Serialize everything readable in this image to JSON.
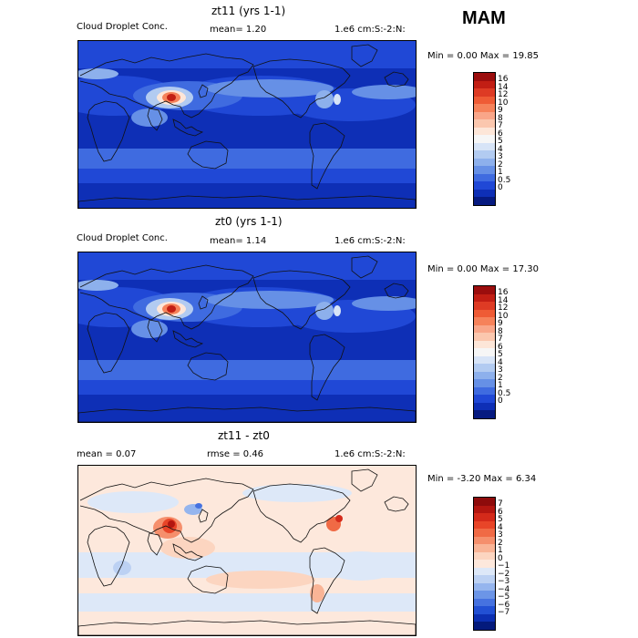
{
  "season": "MAM",
  "panels": [
    {
      "title": "zt11 (yrs 1-1)",
      "left_label": "Cloud Droplet Conc.",
      "mid_label": "mean=    1.20",
      "right_label": "1.e6 cm:S:-2:N:",
      "minmax": "Min =    0.00 Max =   19.85",
      "field": "zt11",
      "colorbar": {
        "labels": [
          "16",
          "14",
          "12",
          "10",
          "9",
          "8",
          "7",
          "6",
          "5",
          "4",
          "3",
          "2",
          "1",
          "0.5",
          "0"
        ],
        "colors": [
          "#9b0d0d",
          "#c21e14",
          "#de3b24",
          "#ef5b35",
          "#f6825a",
          "#f9a689",
          "#fbc7ae",
          "#fde6d8",
          "#f6f6f6",
          "#d7e4f7",
          "#b2cbf1",
          "#8db0ec",
          "#6690e6",
          "#3f6be0",
          "#2048d6",
          "#0e2fb6",
          "#061a80"
        ]
      }
    },
    {
      "title": "zt0 (yrs 1-1)",
      "left_label": "Cloud Droplet Conc.",
      "mid_label": "mean=    1.14",
      "right_label": "1.e6 cm:S:-2:N:",
      "minmax": "Min =    0.00 Max =   17.30",
      "field": "zt0",
      "colorbar": {
        "labels": [
          "16",
          "14",
          "12",
          "10",
          "9",
          "8",
          "7",
          "6",
          "5",
          "4",
          "3",
          "2",
          "1",
          "0.5",
          "0"
        ],
        "colors": [
          "#9b0d0d",
          "#c21e14",
          "#de3b24",
          "#ef5b35",
          "#f6825a",
          "#f9a689",
          "#fbc7ae",
          "#fde6d8",
          "#f6f6f6",
          "#d7e4f7",
          "#b2cbf1",
          "#8db0ec",
          "#6690e6",
          "#3f6be0",
          "#2048d6",
          "#0e2fb6",
          "#061a80"
        ]
      }
    },
    {
      "title": "zt11 - zt0",
      "left_label": "mean =    0.07",
      "mid_label": "rmse =    0.46",
      "right_label": "1.e6 cm:S:-2:N:",
      "minmax": "Min =  -3.20 Max =    6.34",
      "field": "diff",
      "colorbar": {
        "labels": [
          "7",
          "6",
          "5",
          "4",
          "3",
          "2",
          "1",
          "0",
          "−1",
          "−2",
          "−3",
          "−4",
          "−5",
          "−6",
          "−7"
        ],
        "colors": [
          "#8e0b0b",
          "#b31610",
          "#d42a1a",
          "#e84528",
          "#f06a45",
          "#f58f6c",
          "#f9b496",
          "#fcd5c0",
          "#fde8dc",
          "#dde8f8",
          "#bcd1f3",
          "#95b5ee",
          "#6c95e7",
          "#4672e0",
          "#2250d4",
          "#0c2fb2",
          "#041a7c"
        ]
      }
    }
  ]
}
